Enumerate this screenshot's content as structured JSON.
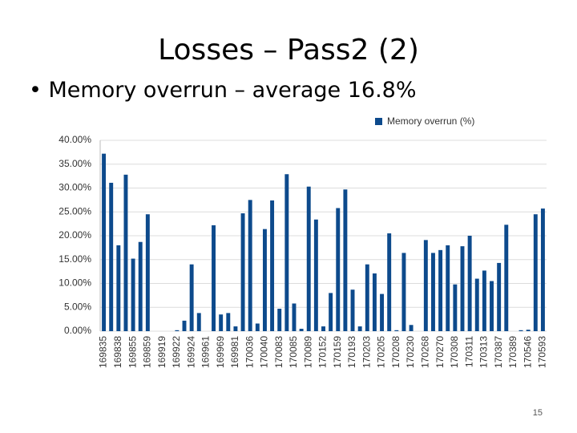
{
  "slide": {
    "title": "Losses – Pass2 (2)",
    "bullet": "Memory overrun – average 16.8%",
    "page_number": "15"
  },
  "chart_data": {
    "type": "bar",
    "categories": [
      "169835",
      null,
      "169838",
      null,
      "169855",
      null,
      "169859",
      null,
      "169919",
      null,
      "169922",
      null,
      "169924",
      null,
      "169961",
      null,
      "169969",
      null,
      "169981",
      null,
      "170036",
      null,
      "170040",
      null,
      "170083",
      null,
      "170085",
      null,
      "170089",
      null,
      "170152",
      null,
      "170159",
      null,
      "170193",
      null,
      "170203",
      null,
      "170205",
      null,
      "170208",
      null,
      "170230",
      null,
      "170268",
      null,
      "170270",
      null,
      "170308",
      null,
      "170311",
      null,
      "170313",
      null,
      "170387",
      null,
      "170389",
      null,
      "170546",
      null,
      "170593"
    ],
    "series": [
      {
        "name": "Memory overrun (%)",
        "color": "#0d4a8c",
        "values": [
          37.2,
          31.1,
          18,
          32.8,
          15.2,
          18.7,
          24.5,
          0,
          0,
          0,
          0.2,
          2.2,
          14,
          3.8,
          0,
          22.2,
          3.5,
          3.8,
          1,
          24.7,
          27.5,
          1.6,
          21.4,
          27.4,
          4.7,
          32.9,
          5.8,
          0.5,
          30.3,
          23.4,
          1,
          8,
          25.8,
          29.7,
          8.7,
          1,
          14,
          12.1,
          7.8,
          20.5,
          0.2,
          16.4,
          1.3,
          0,
          19.1,
          16.4,
          17,
          18,
          9.8,
          17.8,
          20,
          11,
          12.7,
          10.5,
          14.3,
          22.3,
          0,
          0.2,
          0.3,
          24.5,
          25.7
        ]
      }
    ],
    "ylim": [
      0,
      40
    ],
    "yticks": [
      {
        "value": 0,
        "label": "0.00%"
      },
      {
        "value": 5,
        "label": "5.00%"
      },
      {
        "value": 10,
        "label": "10.00%"
      },
      {
        "value": 15,
        "label": "15.00%"
      },
      {
        "value": 20,
        "label": "20.00%"
      },
      {
        "value": 25,
        "label": "25.00%"
      },
      {
        "value": 30,
        "label": "30.00%"
      },
      {
        "value": 35,
        "label": "35.00%"
      },
      {
        "value": 40,
        "label": "40.00%"
      }
    ],
    "grid": true,
    "legend": "top-right"
  }
}
